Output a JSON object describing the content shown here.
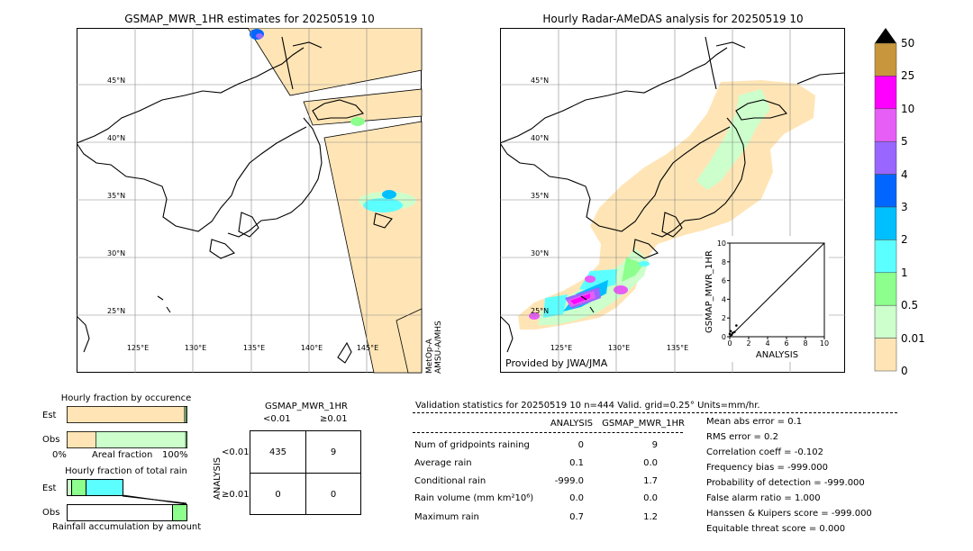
{
  "left_map": {
    "title": "GSMAP_MWR_1HR estimates for 20250519 10",
    "lat_labels": [
      "45°N",
      "40°N",
      "35°N",
      "30°N",
      "25°N"
    ],
    "lon_labels": [
      "125°E",
      "130°E",
      "135°E",
      "140°E",
      "145°E"
    ],
    "side_note_1": "MetOp-A",
    "side_note_2": "AMSU-A/MHS"
  },
  "right_map": {
    "title": "Hourly Radar-AMeDAS analysis for 20250519 10",
    "lat_labels": [
      "45°N",
      "40°N",
      "35°N",
      "30°N",
      "25°N"
    ],
    "lon_labels": [
      "125°E",
      "130°E",
      "135°E"
    ],
    "credit": "Provided by JWA/JMA"
  },
  "colorbar": {
    "labels": [
      "50",
      "25",
      "10",
      "5",
      "4",
      "3",
      "2",
      "1",
      "0.5",
      "0.01",
      "0"
    ],
    "colors": [
      "#c8963c",
      "#ff00ff",
      "#e65ef5",
      "#9966ff",
      "#0066ff",
      "#00bfff",
      "#5cffff",
      "#8cff8c",
      "#ccffcc",
      "#ffe5b5"
    ],
    "top_arrow_color": "#000000"
  },
  "chart_data": [
    {
      "type": "scatter",
      "title": "",
      "xlabel": "ANALYSIS",
      "ylabel": "GSMAP_MWR_1HR",
      "xlim": [
        0,
        10
      ],
      "ylim": [
        0,
        10
      ],
      "xticks": [
        "0",
        "2",
        "4",
        "6",
        "8",
        "10"
      ],
      "yticks": [
        "0",
        "2",
        "4",
        "6",
        "8",
        "10"
      ],
      "x": [
        0.0,
        0.1,
        0.2,
        0.3,
        0.5,
        0.7
      ],
      "y": [
        0.3,
        0.6,
        0.2,
        0.4,
        0.5,
        1.2
      ]
    },
    {
      "type": "bar",
      "title": "Hourly fraction by occurence",
      "categories": [
        "Est",
        "Obs"
      ],
      "xlabel": "Areal fraction",
      "x_left": "0%",
      "x_right": "100%",
      "series": [
        {
          "values": [
            0.98,
            0.24
          ]
        },
        {
          "values": [
            0.01,
            0.75
          ]
        },
        {
          "values": [
            0.01,
            0.01
          ]
        }
      ],
      "colors": [
        "#ffe5b5",
        "#ccffcc",
        "#8cff8c"
      ]
    },
    {
      "type": "bar",
      "title": "Hourly fraction of total rain",
      "categories": [
        "Est",
        "Obs"
      ],
      "xlabel": "Rainfall accumulation by amount"
    }
  ],
  "contingency": {
    "title": "GSMAP_MWR_1HR",
    "col_headers": [
      "<0.01",
      "≥0.01"
    ],
    "row_axis": "ANALYSIS",
    "row_headers": [
      "<0.01",
      "≥0.01"
    ],
    "cells": [
      "435",
      "9",
      "0",
      "0"
    ]
  },
  "validation": {
    "header": "Validation statistics for 20250519 10  n=444 Valid. grid=0.25° Units=mm/hr.",
    "col_analysis": "ANALYSIS",
    "col_gsmap": "GSMAP_MWR_1HR",
    "rows": [
      {
        "label": "Num of gridpoints raining",
        "analysis": "0",
        "gsmap": "9"
      },
      {
        "label": "Average rain",
        "analysis": "0.1",
        "gsmap": "0.0"
      },
      {
        "label": "Conditional rain",
        "analysis": "-999.0",
        "gsmap": "1.7"
      },
      {
        "label": "Rain volume (mm km²10⁶)",
        "analysis": "0.0",
        "gsmap": "0.0"
      },
      {
        "label": "Maximum rain",
        "analysis": "0.7",
        "gsmap": "1.2"
      }
    ],
    "scores": [
      "Mean abs error =    0.1",
      "RMS error =    0.2",
      "Correlation coeff = -0.102",
      "Frequency bias = -999.000",
      "Probability of detection = -999.000",
      "False alarm ratio =  1.000",
      "Hanssen & Kuipers score = -999.000",
      "Equitable threat score =  0.000"
    ]
  }
}
